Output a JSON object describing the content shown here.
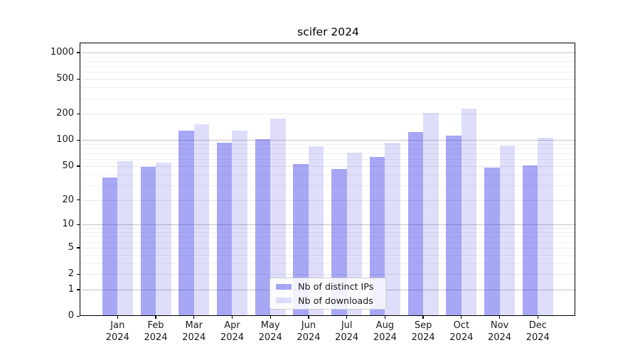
{
  "chart_data": {
    "type": "bar",
    "title": "scifer 2024",
    "categories": [
      [
        "Jan",
        "2024"
      ],
      [
        "Feb",
        "2024"
      ],
      [
        "Mar",
        "2024"
      ],
      [
        "Apr",
        "2024"
      ],
      [
        "May",
        "2024"
      ],
      [
        "Jun",
        "2024"
      ],
      [
        "Jul",
        "2024"
      ],
      [
        "Aug",
        "2024"
      ],
      [
        "Sep",
        "2024"
      ],
      [
        "Oct",
        "2024"
      ],
      [
        "Nov",
        "2024"
      ],
      [
        "Dec",
        "2024"
      ]
    ],
    "series": [
      {
        "name": "Nb of distinct IPs",
        "key": "distinct-ips",
        "color": "rgba(60,60,232,0.45)",
        "values": [
          37,
          49,
          127,
          93,
          102,
          53,
          46,
          64,
          123,
          113,
          48,
          51
        ]
      },
      {
        "name": "Nb of downloads",
        "key": "downloads",
        "color": "rgba(60,60,232,0.17)",
        "values": [
          57,
          55,
          152,
          129,
          175,
          85,
          71,
          93,
          204,
          228,
          86,
          107
        ]
      }
    ],
    "yticks": [
      0,
      1,
      2,
      5,
      10,
      20,
      50,
      100,
      200,
      500,
      1000
    ],
    "ylim": [
      0,
      1000
    ],
    "yscale": "log1p",
    "grid": true,
    "legend_position": "lower center"
  }
}
